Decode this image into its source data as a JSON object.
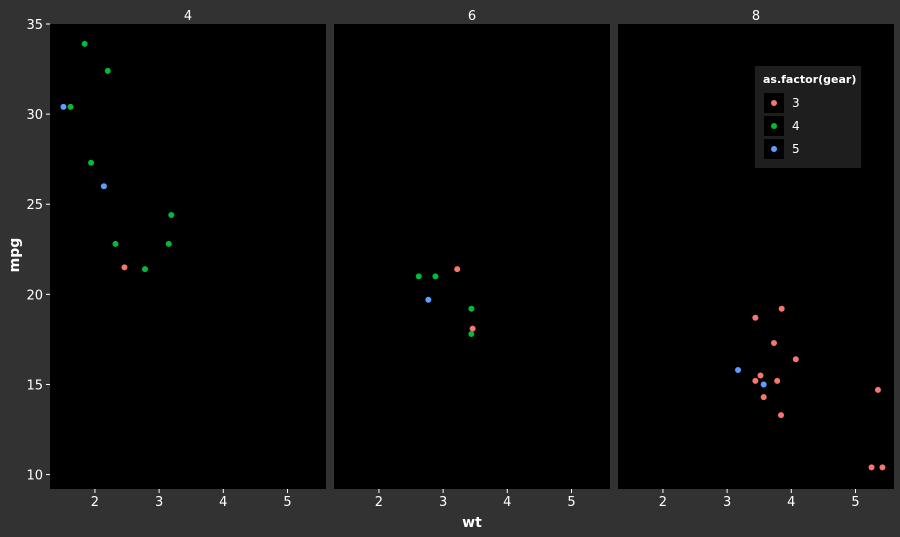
{
  "chart_data": {
    "type": "scatter",
    "xlabel": "wt",
    "ylabel": "mpg",
    "facet_labels": [
      "4",
      "6",
      "8"
    ],
    "xlim": [
      1.3,
      5.6
    ],
    "ylim": [
      9.2,
      35.0
    ],
    "x_ticks": [
      2,
      3,
      4,
      5
    ],
    "y_ticks": [
      10,
      15,
      20,
      25,
      30,
      35
    ],
    "grid": false,
    "background": "#000000",
    "panel_strip_color": "#323232",
    "legend": {
      "title": "as.factor(gear)",
      "placement": "top-right",
      "entries": [
        {
          "label": "3",
          "color": "#f8766d"
        },
        {
          "label": "4",
          "color": "#00ba38"
        },
        {
          "label": "5",
          "color": "#619cff"
        }
      ]
    },
    "series": [
      {
        "facet": "4",
        "gear": "3",
        "points": [
          [
            2.46,
            21.5
          ]
        ]
      },
      {
        "facet": "4",
        "gear": "4",
        "points": [
          [
            2.32,
            22.8
          ],
          [
            3.19,
            24.4
          ],
          [
            3.15,
            22.8
          ],
          [
            2.2,
            32.4
          ],
          [
            1.62,
            30.4
          ],
          [
            1.84,
            33.9
          ],
          [
            1.94,
            27.3
          ],
          [
            2.78,
            21.4
          ]
        ]
      },
      {
        "facet": "4",
        "gear": "5",
        "points": [
          [
            2.14,
            26.0
          ],
          [
            1.51,
            30.4
          ]
        ]
      },
      {
        "facet": "6",
        "gear": "3",
        "points": [
          [
            3.22,
            21.4
          ],
          [
            3.46,
            18.1
          ]
        ]
      },
      {
        "facet": "6",
        "gear": "4",
        "points": [
          [
            2.62,
            21.0
          ],
          [
            2.88,
            21.0
          ],
          [
            3.44,
            19.2
          ],
          [
            3.44,
            17.8
          ]
        ]
      },
      {
        "facet": "6",
        "gear": "5",
        "points": [
          [
            2.77,
            19.7
          ]
        ]
      },
      {
        "facet": "8",
        "gear": "3",
        "points": [
          [
            3.44,
            18.7
          ],
          [
            3.57,
            14.3
          ],
          [
            4.07,
            16.4
          ],
          [
            3.73,
            17.3
          ],
          [
            3.78,
            15.2
          ],
          [
            5.25,
            10.4
          ],
          [
            5.42,
            10.4
          ],
          [
            5.35,
            14.7
          ],
          [
            3.52,
            15.5
          ],
          [
            3.44,
            15.2
          ],
          [
            3.84,
            13.3
          ],
          [
            3.85,
            19.2
          ]
        ]
      },
      {
        "facet": "8",
        "gear": "5",
        "points": [
          [
            3.17,
            15.8
          ],
          [
            3.57,
            15.0
          ]
        ]
      }
    ]
  }
}
